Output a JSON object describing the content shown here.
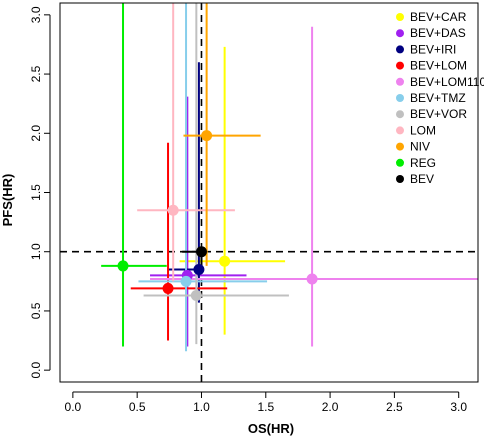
{
  "chart_data": {
    "type": "scatter",
    "title": "",
    "xlabel": "OS(HR)",
    "ylabel": "PFS(HR)",
    "xlim": [
      -0.1,
      3.15
    ],
    "ylim": [
      -0.1,
      3.1
    ],
    "xticks": [
      "0.0",
      "0.5",
      "1.0",
      "1.5",
      "2.0",
      "2.5",
      "3.0"
    ],
    "yticks": [
      "0.0",
      "0.5",
      "1.0",
      "1.5",
      "2.0",
      "2.5",
      "3.0"
    ],
    "reference_lines": {
      "x": 1.0,
      "y": 1.0,
      "style": "dashed"
    },
    "grid": false,
    "legend_position": "top-right",
    "series": [
      {
        "name": "BEV+CAR",
        "color": "#FFFF00",
        "x": 1.18,
        "x_low": 0.83,
        "x_high": 1.65,
        "y": 0.92,
        "y_low": 0.3,
        "y_high": 2.73
      },
      {
        "name": "BEV+DAS",
        "color": "#A020F0",
        "x": 0.89,
        "x_low": 0.6,
        "x_high": 1.35,
        "y": 0.8,
        "y_low": 0.2,
        "y_high": 2.31
      },
      {
        "name": "BEV+IRI",
        "color": "#000080",
        "x": 0.98,
        "x_low": 0.74,
        "x_high": 1.02,
        "y": 0.85,
        "y_low": 0.57,
        "y_high": 2.6
      },
      {
        "name": "BEV+LOM",
        "color": "#FF0000",
        "x": 0.74,
        "x_low": 0.45,
        "x_high": 1.2,
        "y": 0.69,
        "y_low": 0.25,
        "y_high": 1.92
      },
      {
        "name": "BEV+LOM110",
        "color": "#EE82EE",
        "x": 1.86,
        "x_low": 0.6,
        "x_high": 3.15,
        "y": 0.77,
        "y_low": 0.2,
        "y_high": 2.9
      },
      {
        "name": "BEV+TMZ",
        "color": "#87CEEB",
        "x": 0.88,
        "x_low": 0.51,
        "x_high": 1.51,
        "y": 0.75,
        "y_low": 0.16,
        "y_high": 3.1
      },
      {
        "name": "BEV+VOR",
        "color": "#C0C0C0",
        "x": 0.96,
        "x_low": 0.55,
        "x_high": 1.68,
        "y": 0.63,
        "y_low": 0.22,
        "y_high": 3.1
      },
      {
        "name": "LOM",
        "color": "#FFB6C1",
        "x": 0.78,
        "x_low": 0.5,
        "x_high": 1.26,
        "y": 1.35,
        "y_low": 0.75,
        "y_high": 3.1
      },
      {
        "name": "NIV",
        "color": "#FFA500",
        "x": 1.04,
        "x_low": 0.86,
        "x_high": 1.46,
        "y": 1.98,
        "y_low": 0.88,
        "y_high": 3.1
      },
      {
        "name": "REG",
        "color": "#00EE00",
        "x": 0.39,
        "x_low": 0.22,
        "x_high": 0.73,
        "y": 0.88,
        "y_low": 0.2,
        "y_high": 3.1
      },
      {
        "name": "BEV",
        "color": "#000000",
        "x": 1.0,
        "x_low": 0.85,
        "x_high": 1.0,
        "y": 1.0,
        "y_low": 0.85,
        "y_high": 1.0
      }
    ]
  }
}
